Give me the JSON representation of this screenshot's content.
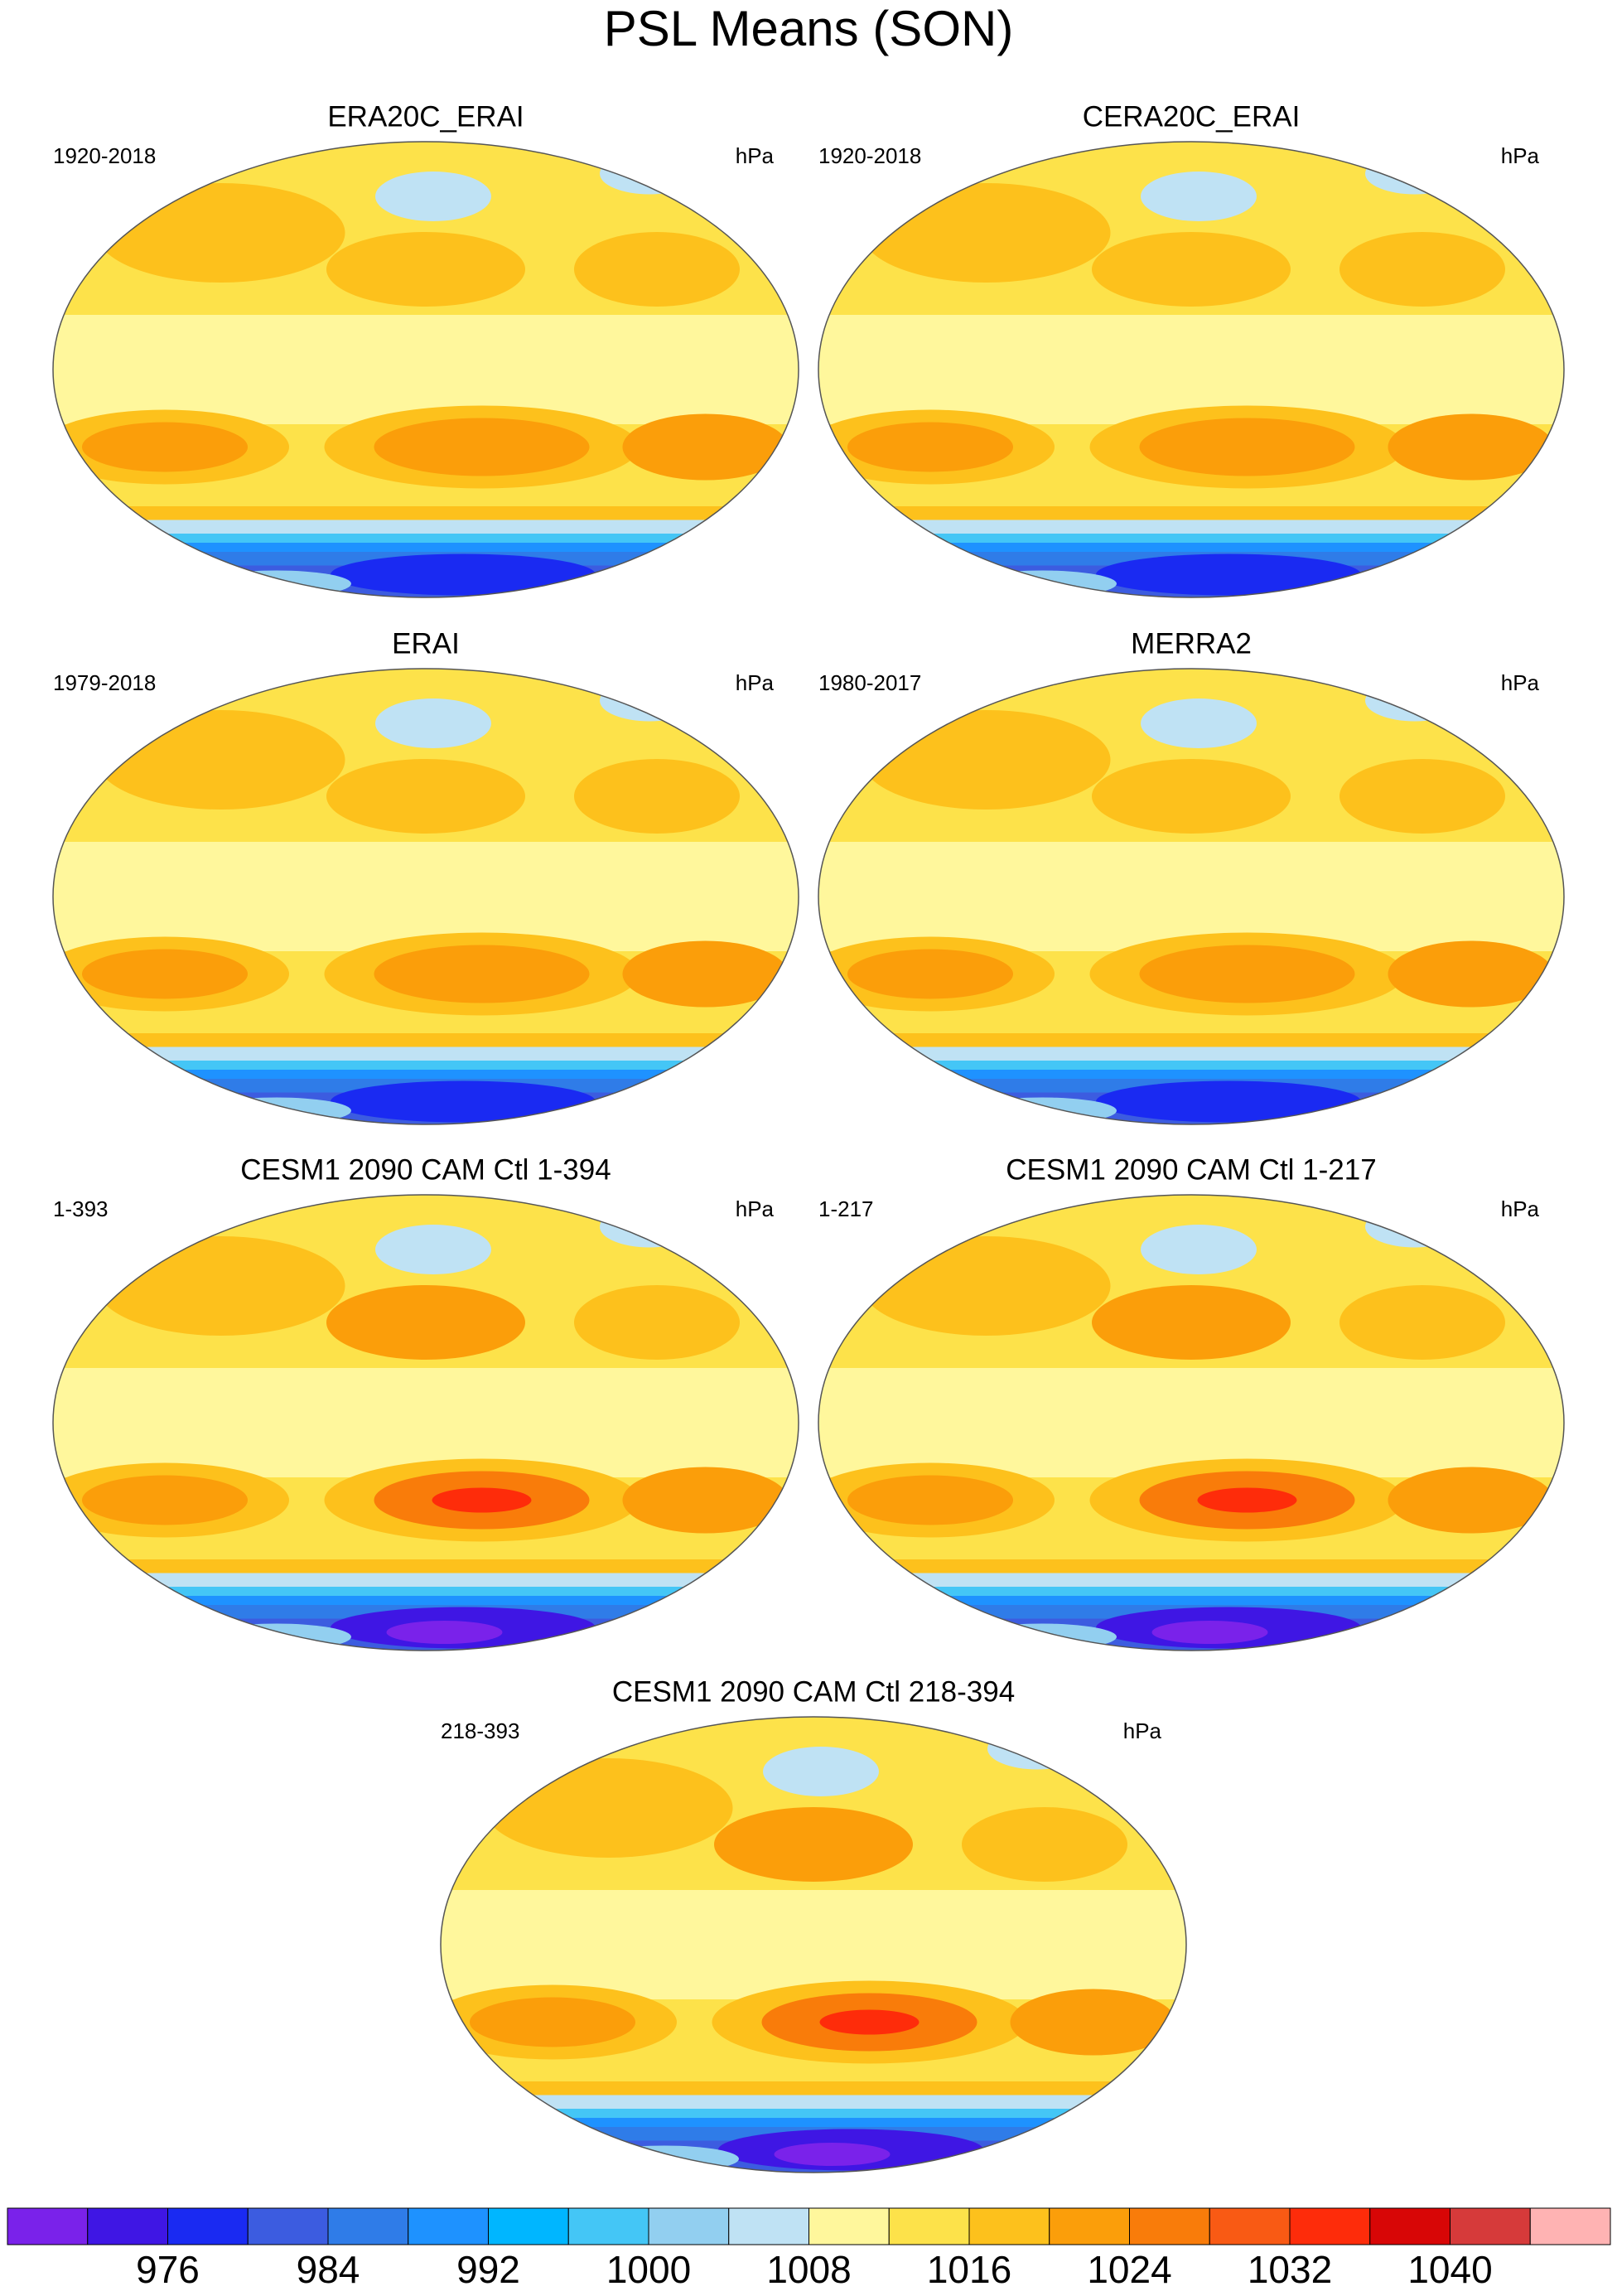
{
  "title": "PSL Means (SON)",
  "panels": [
    {
      "title": "ERA20C_ERAI",
      "left_label": "1920-2018",
      "right_label": "hPa"
    },
    {
      "title": "CERA20C_ERAI",
      "left_label": "1920-2018",
      "right_label": "hPa"
    },
    {
      "title": "ERAI",
      "left_label": "1979-2018",
      "right_label": "hPa"
    },
    {
      "title": "MERRA2",
      "left_label": "1980-2017",
      "right_label": "hPa"
    },
    {
      "title": "CESM1 2090 CAM Ctl 1-394",
      "left_label": "1-393",
      "right_label": "hPa"
    },
    {
      "title": "CESM1 2090 CAM Ctl 1-217",
      "left_label": "1-217",
      "right_label": "hPa"
    },
    {
      "title": "CESM1 2090 CAM Ctl 218-394",
      "left_label": "218-393",
      "right_label": "hPa"
    }
  ],
  "colorbar": {
    "range": [
      968,
      1048
    ],
    "ticks": [
      976,
      984,
      992,
      1000,
      1008,
      1016,
      1024,
      1032,
      1040
    ],
    "colors": [
      "#7a22ea",
      "#3f16e4",
      "#1a2af2",
      "#3c5ce0",
      "#2f7ce8",
      "#1e92ff",
      "#00b6ff",
      "#44c6f6",
      "#92cff0",
      "#bfe2f4",
      "#fff79c",
      "#fde24a",
      "#fdc11c",
      "#fb9e0a",
      "#f97c0a",
      "#f95a14",
      "#fe2c0a",
      "#d80606",
      "#d63a3a",
      "#ffb3b3"
    ]
  }
}
